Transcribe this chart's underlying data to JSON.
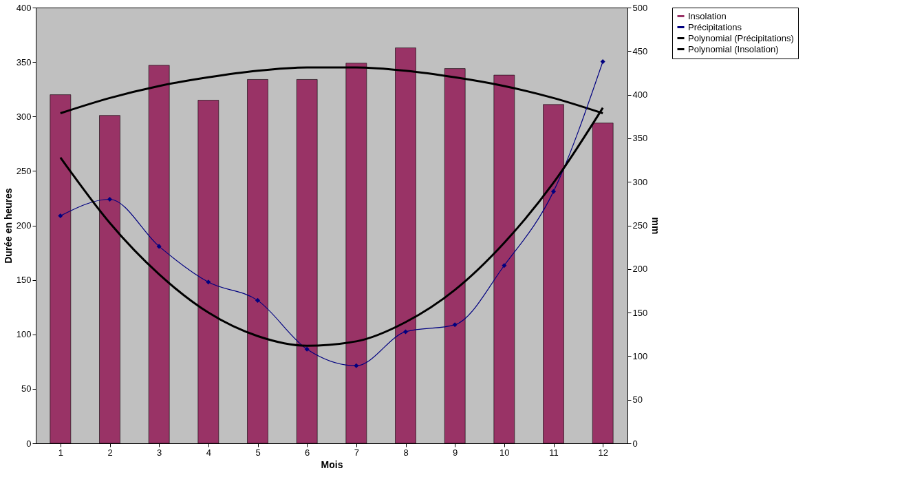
{
  "chart_data": {
    "type": "bar",
    "xlabel": "Mois",
    "ylabel": "Durée en heures",
    "y2label": "mm",
    "x": [
      1,
      2,
      3,
      4,
      5,
      6,
      7,
      8,
      9,
      10,
      11,
      12
    ],
    "xlim": [
      0.5,
      12.5
    ],
    "xticks": [
      1,
      2,
      3,
      4,
      5,
      6,
      7,
      8,
      9,
      10,
      11,
      12
    ],
    "ylim": [
      0,
      400
    ],
    "yticks": [
      0,
      50,
      100,
      150,
      200,
      250,
      300,
      350,
      400
    ],
    "y2lim": [
      0,
      500
    ],
    "y2ticks": [
      0,
      50,
      100,
      150,
      200,
      250,
      300,
      350,
      400,
      450,
      500
    ],
    "grid": false,
    "legend": "right",
    "series": [
      {
        "name": "Insolation",
        "color": "#993366",
        "values": [
          320,
          301,
          347,
          315,
          334,
          334,
          349,
          363,
          344,
          338,
          311,
          294
        ]
      },
      {
        "name": "Précipitations",
        "type": "line",
        "axis": "y2",
        "marker": "diamond",
        "color": "#000080",
        "values": [
          261,
          280,
          226,
          185,
          164,
          108,
          89,
          128,
          136,
          204,
          289,
          438
        ]
      },
      {
        "name": "Polynomial (Précipitations)",
        "type": "line",
        "axis": "y2",
        "marker": "none",
        "color": "#000000",
        "values": [
          328,
          253,
          194,
          150,
          123,
          112,
          117,
          139,
          176,
          230,
          299,
          385
        ]
      },
      {
        "name": "Polynomial (Insolation)",
        "type": "line",
        "marker": "none",
        "color": "#000000",
        "values": [
          303,
          317,
          328,
          336,
          342,
          345,
          345,
          342,
          336,
          328,
          317,
          303
        ]
      }
    ]
  }
}
